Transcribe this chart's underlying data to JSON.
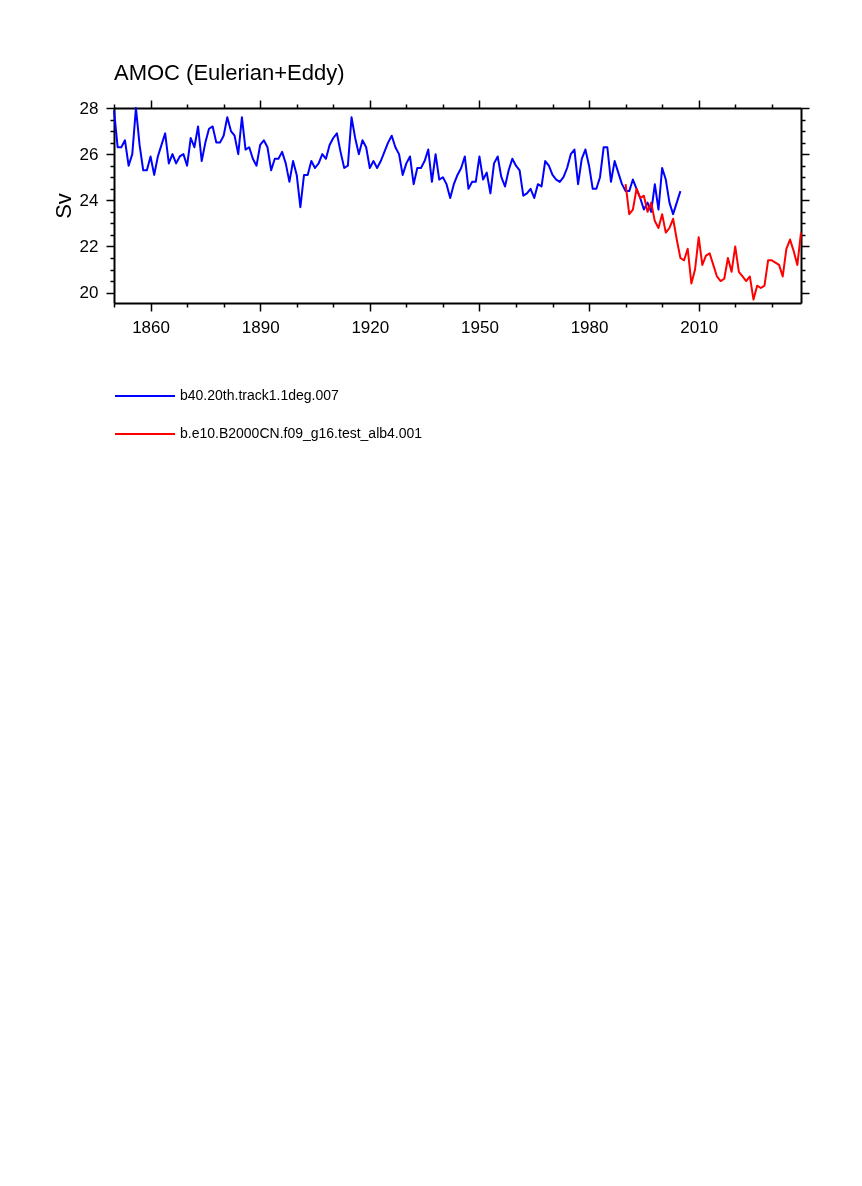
{
  "chart_data": {
    "type": "line",
    "title": "AMOC (Eulerian+Eddy)",
    "ylabel": "Sv",
    "xlim": [
      1850,
      2038
    ],
    "ylim": [
      19.55,
      28
    ],
    "xticks": [
      {
        "value": 1850,
        "label": null
      },
      1860,
      {
        "value": 1870,
        "label": null
      },
      {
        "value": 1880,
        "label": null
      },
      1890,
      {
        "value": 1900,
        "label": null
      },
      {
        "value": 1910,
        "label": null
      },
      1920,
      {
        "value": 1930,
        "label": null
      },
      {
        "value": 1940,
        "label": null
      },
      1950,
      {
        "value": 1960,
        "label": null
      },
      {
        "value": 1970,
        "label": null
      },
      1980,
      {
        "value": 1990,
        "label": null
      },
      {
        "value": 2000,
        "label": null
      },
      2010,
      {
        "value": 2020,
        "label": null
      },
      {
        "value": 2030,
        "label": null
      }
    ],
    "yticks": [
      20,
      {
        "value": 20.5,
        "label": null
      },
      {
        "value": 21,
        "label": null
      },
      {
        "value": 21.5,
        "label": null
      },
      22,
      {
        "value": 22.5,
        "label": null
      },
      {
        "value": 23,
        "label": null
      },
      {
        "value": 23.5,
        "label": null
      },
      24,
      {
        "value": 24.5,
        "label": null
      },
      {
        "value": 25,
        "label": null
      },
      {
        "value": 25.5,
        "label": null
      },
      26,
      {
        "value": 26.5,
        "label": null
      },
      {
        "value": 27,
        "label": null
      },
      {
        "value": 27.5,
        "label": null
      },
      28
    ],
    "legend": "bottom",
    "series": [
      {
        "name": "b40.20th.track1.1deg.007",
        "color": "#0000ff",
        "x": [
          1850,
          1851,
          1852,
          1853,
          1854,
          1855,
          1856,
          1857,
          1858,
          1859,
          1860,
          1861,
          1862,
          1863,
          1864,
          1865,
          1866,
          1867,
          1868,
          1869,
          1870,
          1871,
          1872,
          1873,
          1874,
          1875,
          1876,
          1877,
          1878,
          1879,
          1880,
          1881,
          1882,
          1883,
          1884,
          1885,
          1886,
          1887,
          1888,
          1889,
          1890,
          1891,
          1892,
          1893,
          1894,
          1895,
          1896,
          1897,
          1898,
          1899,
          1900,
          1901,
          1902,
          1903,
          1904,
          1905,
          1906,
          1907,
          1908,
          1909,
          1910,
          1911,
          1912,
          1913,
          1914,
          1915,
          1916,
          1917,
          1918,
          1919,
          1920,
          1921,
          1922,
          1923,
          1924,
          1925,
          1926,
          1927,
          1928,
          1929,
          1930,
          1931,
          1932,
          1933,
          1934,
          1935,
          1936,
          1937,
          1938,
          1939,
          1940,
          1941,
          1942,
          1943,
          1944,
          1945,
          1946,
          1947,
          1948,
          1949,
          1950,
          1951,
          1952,
          1953,
          1954,
          1955,
          1956,
          1957,
          1958,
          1959,
          1960,
          1961,
          1962,
          1963,
          1964,
          1965,
          1966,
          1967,
          1968,
          1969,
          1970,
          1971,
          1972,
          1973,
          1974,
          1975,
          1976,
          1977,
          1978,
          1979,
          1980,
          1981,
          1982,
          1983,
          1984,
          1985,
          1986,
          1987,
          1988,
          1989,
          1990,
          1991,
          1992,
          1993,
          1994,
          1995,
          1996,
          1997,
          1998,
          1999,
          2000,
          2001,
          2002,
          2003,
          2004,
          2005
        ],
        "values": [
          27.9,
          26.3,
          26.3,
          26.6,
          25.5,
          26.0,
          28.0,
          26.4,
          25.3,
          25.3,
          25.9,
          25.1,
          25.9,
          26.4,
          26.9,
          25.6,
          26.0,
          25.6,
          25.9,
          26.0,
          25.5,
          26.7,
          26.3,
          27.2,
          25.7,
          26.5,
          27.1,
          27.2,
          26.5,
          26.5,
          26.8,
          27.6,
          27.0,
          26.8,
          26.0,
          27.6,
          26.2,
          26.3,
          25.8,
          25.5,
          26.4,
          26.6,
          26.3,
          25.3,
          25.8,
          25.8,
          26.1,
          25.6,
          24.8,
          25.7,
          25.1,
          23.7,
          25.1,
          25.1,
          25.7,
          25.4,
          25.6,
          26.0,
          25.8,
          26.4,
          26.7,
          26.9,
          26.1,
          25.4,
          25.5,
          27.6,
          26.7,
          26.0,
          26.6,
          26.3,
          25.4,
          25.7,
          25.4,
          25.7,
          26.1,
          26.5,
          26.8,
          26.3,
          26.0,
          25.1,
          25.6,
          25.9,
          24.7,
          25.4,
          25.4,
          25.7,
          26.2,
          24.8,
          26.0,
          24.9,
          25.0,
          24.7,
          24.1,
          24.7,
          25.1,
          25.4,
          25.9,
          24.5,
          24.8,
          24.8,
          25.9,
          24.9,
          25.2,
          24.3,
          25.6,
          25.9,
          25.0,
          24.6,
          25.3,
          25.8,
          25.5,
          25.3,
          24.2,
          24.3,
          24.5,
          24.1,
          24.7,
          24.6,
          25.7,
          25.5,
          25.1,
          24.9,
          24.8,
          25.0,
          25.4,
          26.0,
          26.2,
          24.7,
          25.8,
          26.2,
          25.5,
          24.5,
          24.5,
          25.0,
          26.3,
          26.3,
          24.8,
          25.7,
          25.2,
          24.7,
          24.4,
          24.4,
          24.9,
          24.5,
          24.1,
          23.6,
          23.9,
          23.5,
          24.7,
          23.6,
          25.4,
          24.9,
          23.9,
          23.4,
          23.9,
          24.4
        ]
      },
      {
        "name": "b.e10.B2000CN.f09_g16.test_alb4.001",
        "color": "#ff0000",
        "x": [
          1990,
          1991,
          1992,
          1993,
          1994,
          1995,
          1996,
          1997,
          1998,
          1999,
          2000,
          2001,
          2002,
          2003,
          2004,
          2005,
          2006,
          2007,
          2008,
          2009,
          2010,
          2011,
          2012,
          2013,
          2014,
          2015,
          2016,
          2017,
          2018,
          2019,
          2020,
          2021,
          2022,
          2023,
          2024,
          2025,
          2026,
          2027,
          2028,
          2029,
          2030,
          2031,
          2032,
          2033,
          2034,
          2035,
          2036,
          2037,
          2038
        ],
        "values": [
          24.7,
          23.4,
          23.6,
          24.5,
          24.1,
          24.2,
          23.5,
          23.9,
          23.1,
          22.8,
          23.4,
          22.6,
          22.8,
          23.2,
          22.3,
          21.5,
          21.4,
          21.9,
          20.4,
          21.0,
          22.4,
          21.2,
          21.6,
          21.7,
          21.2,
          20.7,
          20.5,
          20.6,
          21.5,
          20.9,
          22.0,
          20.9,
          20.7,
          20.5,
          20.7,
          19.7,
          20.3,
          20.2,
          20.3,
          21.4,
          21.4,
          21.3,
          21.2,
          20.7,
          21.9,
          22.3,
          21.8,
          21.2,
          22.6
        ]
      }
    ]
  }
}
